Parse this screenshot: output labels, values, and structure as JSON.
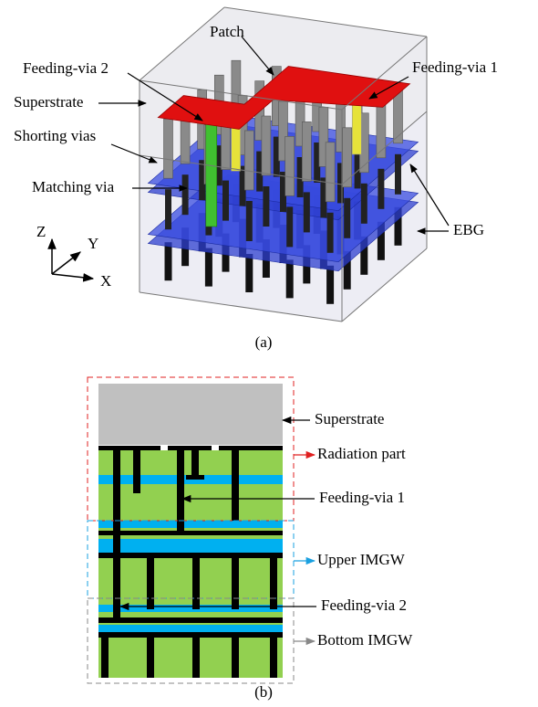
{
  "panel_a": {
    "labels": [
      "Patch",
      "Feeding-via 2",
      "Feeding-via 1",
      "Superstrate",
      "Shorting vias",
      "Matching via",
      "EBG"
    ],
    "axes": {
      "z": "Z",
      "y": "Y",
      "x": "X"
    },
    "caption": "(a)"
  },
  "panel_b": {
    "labels": [
      "Superstrate",
      "Radiation part",
      "Feeding-via 1",
      "Upper IMGW",
      "Feeding-via 2",
      "Bottom IMGW"
    ],
    "caption": "(b)"
  }
}
